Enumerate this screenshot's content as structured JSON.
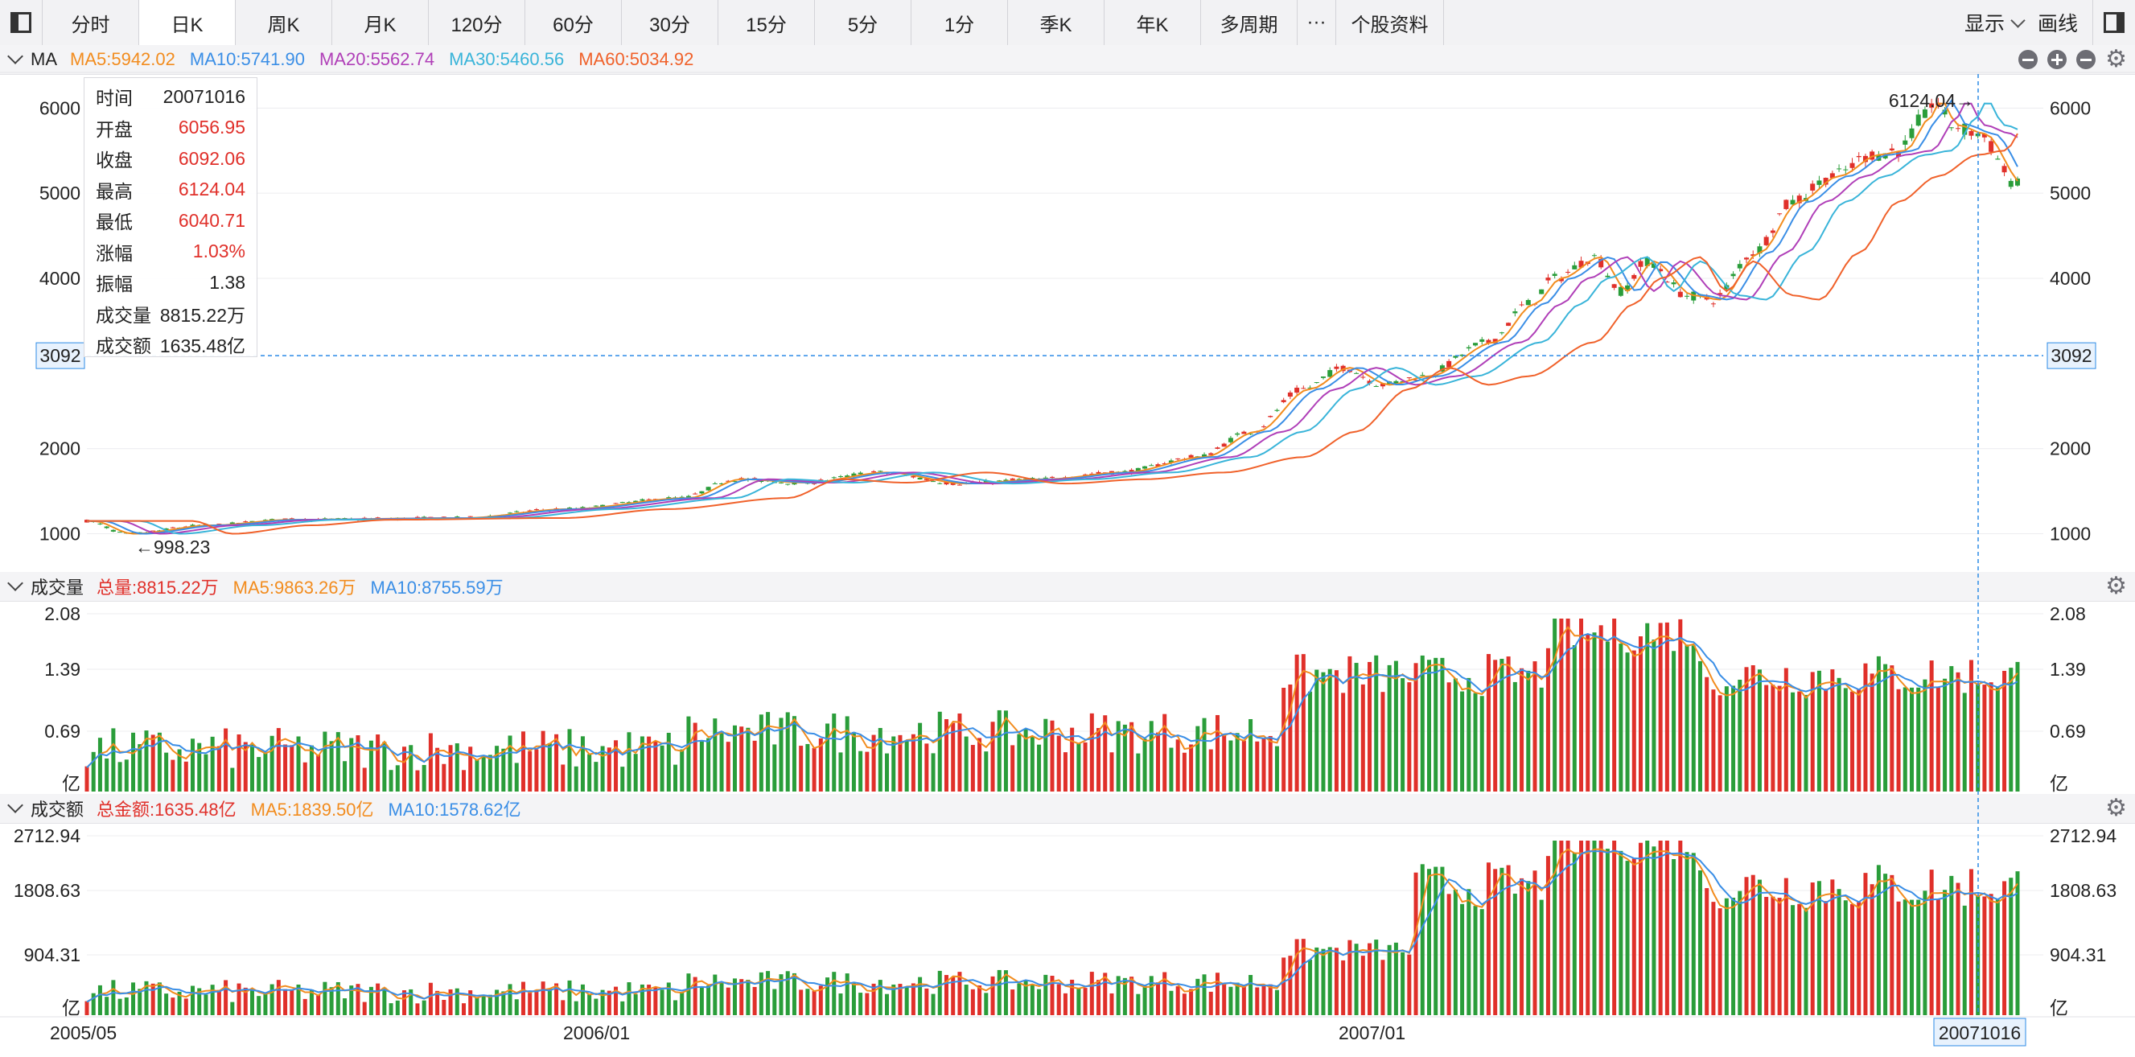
{
  "toolbar": {
    "tabs": [
      "分时",
      "日K",
      "周K",
      "月K",
      "120分",
      "60分",
      "30分",
      "15分",
      "5分",
      "1分",
      "季K",
      "年K",
      "多周期",
      "···",
      "个股资料"
    ],
    "active_tab": "日K",
    "display_label": "显示",
    "draw_label": "画线"
  },
  "price_panel": {
    "name": "MA",
    "ma_items": [
      {
        "label": "MA5:5942.02",
        "color": "#f28c1e"
      },
      {
        "label": "MA10:5741.90",
        "color": "#3a8ee6"
      },
      {
        "label": "MA20:5562.74",
        "color": "#b03fb8"
      },
      {
        "label": "MA30:5460.56",
        "color": "#39b4d9"
      },
      {
        "label": "MA60:5034.92",
        "color": "#f0612a"
      }
    ],
    "y_ticks": [
      "6000",
      "5000",
      "4000",
      "2000",
      "1000"
    ],
    "crosshair_price": "3092",
    "high_note": "6124.04→",
    "low_note": "←998.23"
  },
  "info_box": {
    "rows": [
      {
        "label": "时间",
        "value": "20071016",
        "color": "#222222"
      },
      {
        "label": "开盘",
        "value": "6056.95",
        "color": "#e0302a"
      },
      {
        "label": "收盘",
        "value": "6092.06",
        "color": "#e0302a"
      },
      {
        "label": "最高",
        "value": "6124.04",
        "color": "#e0302a"
      },
      {
        "label": "最低",
        "value": "6040.71",
        "color": "#e0302a"
      },
      {
        "label": "涨幅",
        "value": "1.03%",
        "color": "#e0302a"
      },
      {
        "label": "振幅",
        "value": "1.38",
        "color": "#222222"
      },
      {
        "label": "成交量",
        "value": "8815.22万",
        "color": "#222222"
      },
      {
        "label": "成交额",
        "value": "1635.48亿",
        "color": "#222222"
      }
    ]
  },
  "volume_panel": {
    "name": "成交量",
    "items": [
      {
        "label": "总量:8815.22万",
        "color": "#e0302a"
      },
      {
        "label": "MA5:9863.26万",
        "color": "#f28c1e"
      },
      {
        "label": "MA10:8755.59万",
        "color": "#3a8ee6"
      }
    ],
    "y_ticks": [
      "2.08",
      "1.39",
      "0.69",
      "亿"
    ]
  },
  "amount_panel": {
    "name": "成交额",
    "items": [
      {
        "label": "总金额:1635.48亿",
        "color": "#e0302a"
      },
      {
        "label": "MA5:1839.50亿",
        "color": "#f28c1e"
      },
      {
        "label": "MA10:1578.62亿",
        "color": "#3a8ee6"
      }
    ],
    "y_ticks": [
      "2712.94",
      "1808.63",
      "904.31",
      "亿"
    ]
  },
  "x_axis": {
    "labels": [
      "2005/05",
      "2006/01",
      "2007/01"
    ],
    "cursor_label": "20071016"
  },
  "colors": {
    "up": "#e0302a",
    "down": "#2a9d3a",
    "crosshair": "#2c8be6"
  },
  "chart_data": {
    "type": "candlestick",
    "period": "daily",
    "x_range": [
      "2005/05",
      "2007/10"
    ],
    "price_range": [
      998.23,
      6124.04
    ],
    "ohlc_anchors": [
      {
        "date": "2005/05",
        "close": 1150
      },
      {
        "date": "2005/06",
        "close": 998.23
      },
      {
        "date": "2005/09",
        "close": 1160
      },
      {
        "date": "2006/01",
        "close": 1180
      },
      {
        "date": "2006/05",
        "close": 1640
      },
      {
        "date": "2006/08",
        "close": 1600
      },
      {
        "date": "2006/11",
        "close": 1900
      },
      {
        "date": "2007/01",
        "close": 2700
      },
      {
        "date": "2007/02",
        "close": 2900
      },
      {
        "date": "2007/05",
        "close": 4200
      },
      {
        "date": "2007/06",
        "close": 3800
      },
      {
        "date": "2007/08",
        "close": 5200
      },
      {
        "date": "2007/10/16",
        "open": 6056.95,
        "close": 6092.06,
        "high": 6124.04,
        "low": 6040.71
      },
      {
        "date": "2007/11",
        "close": 5100
      }
    ],
    "volume_yi_ticks": [
      0.69,
      1.39,
      2.08
    ],
    "amount_yi_ticks": [
      904.31,
      1808.63,
      2712.94
    ]
  }
}
